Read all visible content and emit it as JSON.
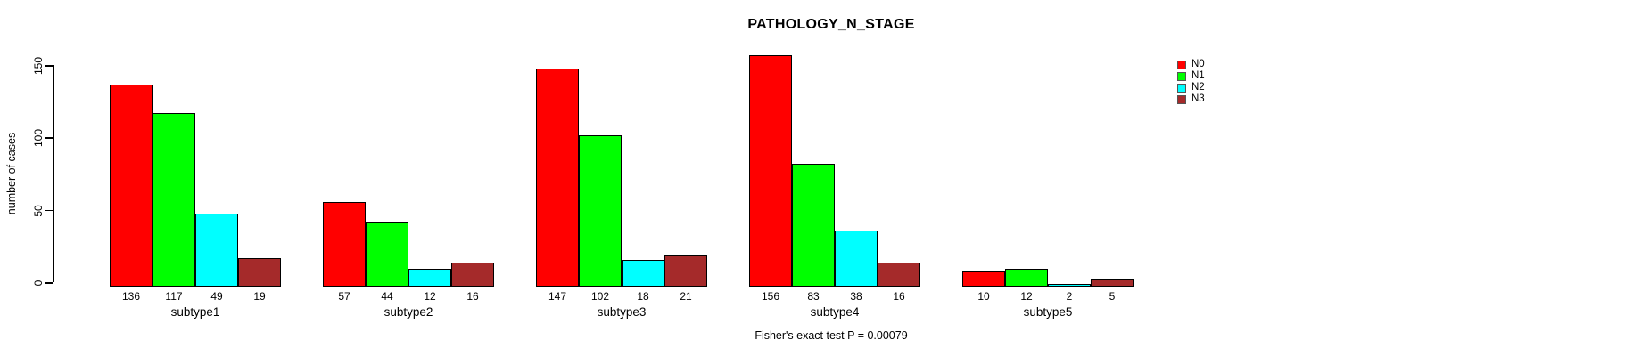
{
  "chart_data": {
    "type": "bar",
    "title": "PATHOLOGY_N_STAGE",
    "ylabel": "number of cases",
    "xlabel": "",
    "categories": [
      "subtype1",
      "subtype2",
      "subtype3",
      "subtype4",
      "subtype5"
    ],
    "series": [
      {
        "name": "N0",
        "color": "#FF0000",
        "values": [
          136,
          57,
          147,
          156,
          10
        ]
      },
      {
        "name": "N1",
        "color": "#00FF00",
        "values": [
          117,
          44,
          102,
          83,
          12
        ]
      },
      {
        "name": "N2",
        "color": "#00FFFF",
        "values": [
          49,
          12,
          18,
          38,
          2
        ]
      },
      {
        "name": "N3",
        "color": "#A52A2A",
        "values": [
          19,
          16,
          21,
          16,
          5
        ]
      }
    ],
    "bar_value_labels": [
      [
        "136",
        "117",
        "49",
        "19"
      ],
      [
        "57",
        "44",
        "12",
        "16"
      ],
      [
        "147",
        "102",
        "18",
        "21"
      ],
      [
        "156",
        "83",
        "38",
        "16"
      ],
      [
        "10",
        "12",
        "2",
        "5"
      ]
    ],
    "yticks": [
      0,
      50,
      100,
      150
    ],
    "ylim": [
      0,
      150
    ],
    "grid": false,
    "legend_position": "right",
    "legend_labels": [
      "N0",
      "N1",
      "N2",
      "N3"
    ],
    "annotation": "Fisher's exact test P = 0.00079"
  }
}
